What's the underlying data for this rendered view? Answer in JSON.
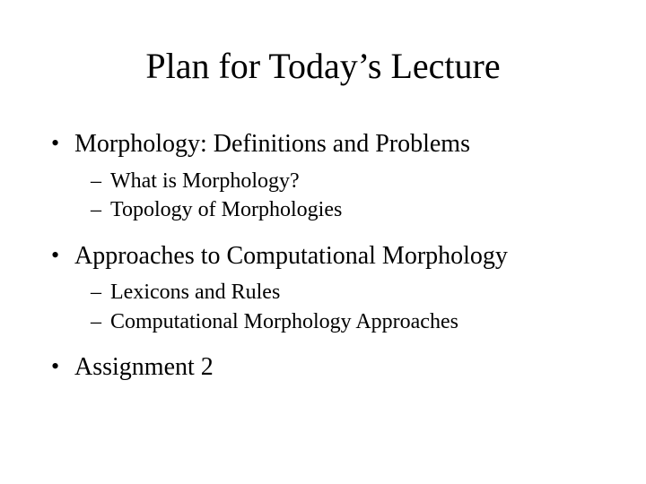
{
  "colors": {
    "background": "#ffffff",
    "text": "#000000"
  },
  "typography": {
    "font_family": "Times New Roman",
    "title_fontsize": 40,
    "level1_fontsize": 28,
    "level2_fontsize": 24
  },
  "title": "Plan for Today’s Lecture",
  "bullets": [
    {
      "text": "Morphology: Definitions and Problems",
      "children": [
        {
          "text": "What is Morphology?"
        },
        {
          "text": "Topology of Morphologies"
        }
      ]
    },
    {
      "text": "Approaches to Computational Morphology",
      "children": [
        {
          "text": "Lexicons and Rules"
        },
        {
          "text": "Computational Morphology Approaches"
        }
      ]
    },
    {
      "text": "Assignment 2",
      "children": []
    }
  ]
}
